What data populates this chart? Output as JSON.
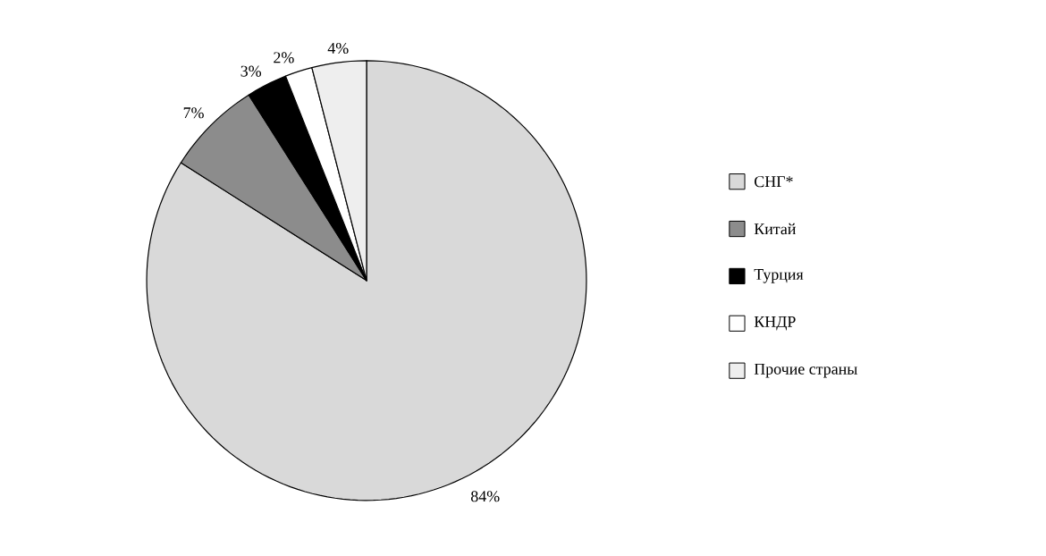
{
  "chart_data": {
    "type": "pie",
    "categories": [
      "СНГ*",
      "Китай",
      "Турция",
      "КНДР",
      "Прочие страны"
    ],
    "values": [
      84,
      7,
      3,
      2,
      4
    ],
    "colors": [
      "#d9d9d9",
      "#8c8c8c",
      "#000000",
      "#ffffff",
      "#eeeeee"
    ],
    "value_labels": [
      "84%",
      "7%",
      "3%",
      "2%",
      "4%"
    ],
    "legend": "right"
  }
}
